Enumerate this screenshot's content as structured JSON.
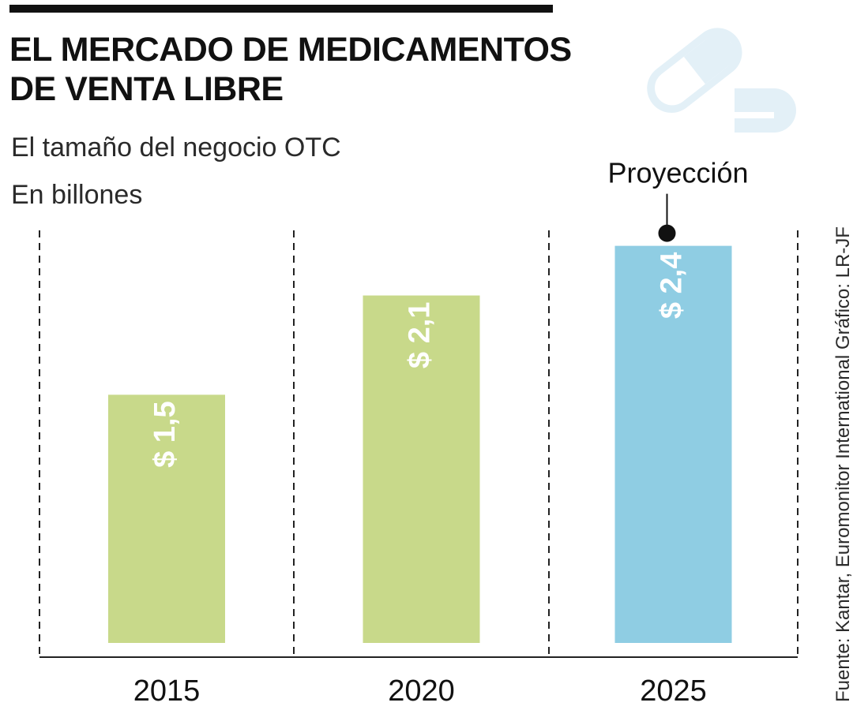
{
  "title_lines": [
    "EL MERCADO DE MEDICAMENTOS",
    "DE VENTA LIBRE"
  ],
  "subtitle": "El tamaño del negocio OTC",
  "units": "En billones",
  "source": "Fuente: Kantar, Euromonitor International   Gráfico: LR-JF",
  "icon": "pill-capsule-icon",
  "colors": {
    "historical": "#c8d98a",
    "projection": "#8fcde3",
    "bar_text": "#ffffff",
    "icon": "#e3f0f7"
  },
  "chart_data": {
    "type": "bar",
    "categories": [
      "2015",
      "2020",
      "2025"
    ],
    "values": [
      1.5,
      2.1,
      2.4
    ],
    "value_labels": [
      "$ 1,5",
      "$ 2,1",
      "$ 2,4"
    ],
    "projected": [
      false,
      false,
      true
    ],
    "annotation": "Proyección",
    "title": "EL MERCADO DE MEDICAMENTOS DE VENTA LIBRE",
    "xlabel": "",
    "ylabel": "En billones",
    "ylim": [
      0,
      2.67
    ],
    "grid": false
  }
}
